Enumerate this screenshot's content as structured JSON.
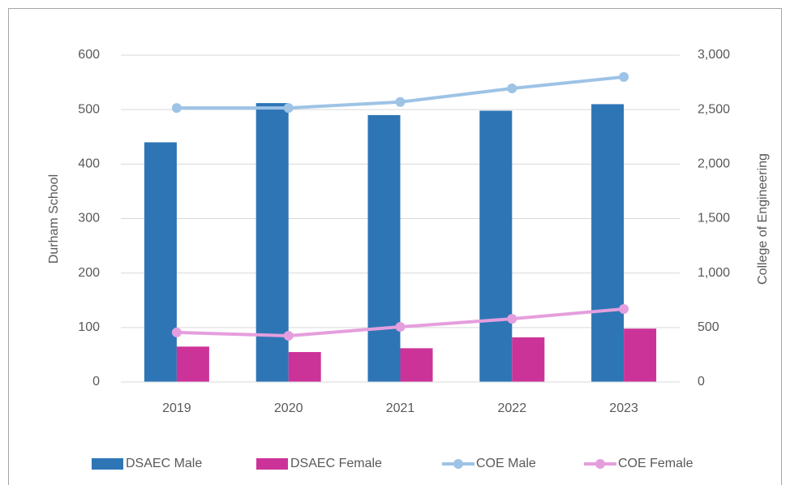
{
  "chart_data": {
    "type": "bar",
    "categories": [
      "2019",
      "2020",
      "2021",
      "2022",
      "2023"
    ],
    "series": [
      {
        "name": "DSAEC Male",
        "type": "bar",
        "color": "#2e75b6",
        "values": [
          440,
          512,
          490,
          498,
          510
        ]
      },
      {
        "name": "DSAEC Female",
        "type": "bar",
        "color": "#cc3399",
        "values": [
          65,
          55,
          62,
          82,
          98
        ]
      },
      {
        "name": "COE Male",
        "type": "line",
        "axis": "y2",
        "color": "#9dc3e6",
        "values": [
          2515,
          2515,
          2570,
          2695,
          2800
        ]
      },
      {
        "name": "COE Female",
        "type": "line",
        "axis": "y2",
        "color": "#e59edd",
        "values": [
          455,
          424,
          506,
          580,
          670
        ]
      }
    ],
    "ylabel": "Durham School",
    "y2label": "College of Engineering",
    "ylim": [
      0,
      600
    ],
    "yticks": [
      0,
      100,
      200,
      300,
      400,
      500,
      600
    ],
    "y2lim": [
      0,
      3000
    ],
    "y2ticks": [
      0,
      500,
      {
        "value": 1000,
        "label": "1,000"
      },
      {
        "value": 1500,
        "label": "1,500"
      },
      {
        "value": 2000,
        "label": "2,000"
      },
      {
        "value": 2500,
        "label": "2,500"
      },
      {
        "value": 3000,
        "label": "3,000"
      }
    ],
    "grid": true,
    "legend": "bottom"
  }
}
